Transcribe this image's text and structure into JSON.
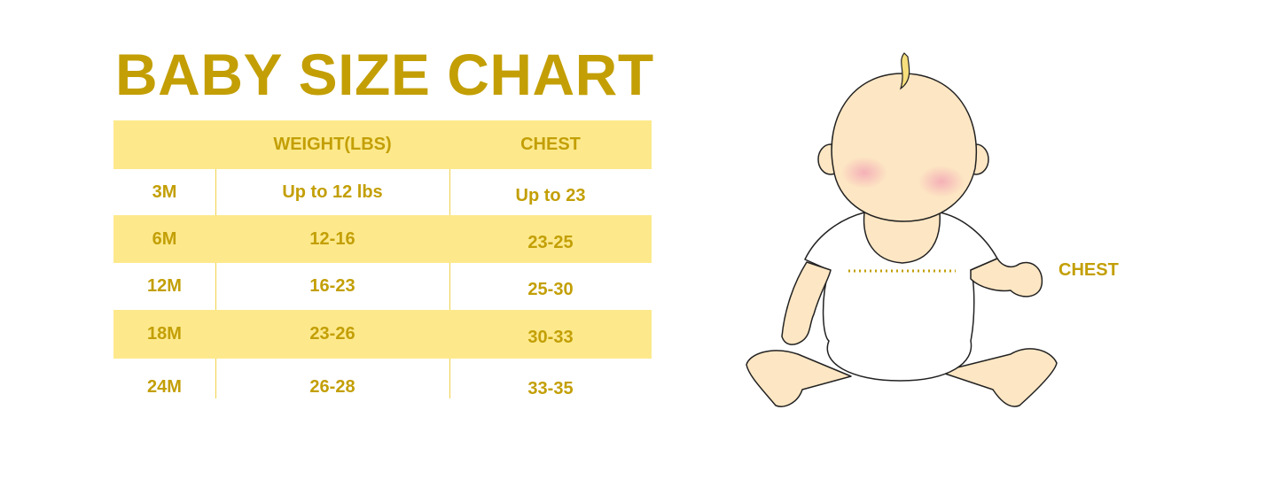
{
  "title": "BABY SIZE CHART",
  "table": {
    "headers": [
      "",
      "WEIGHT(LBS)",
      "CHEST"
    ],
    "rows": [
      [
        "3M",
        "Up to 12 lbs",
        "Up to 23"
      ],
      [
        "6M",
        "12-16",
        "23-25"
      ],
      [
        "12M",
        "16-23",
        "25-30"
      ],
      [
        "18M",
        "23-26",
        "30-33"
      ],
      [
        "24M",
        "26-28",
        "33-35"
      ]
    ]
  },
  "illustration": {
    "chest_label": "CHEST"
  },
  "colors": {
    "text": "#c39f05",
    "band": "#fde98c",
    "skin": "#fde6c3"
  }
}
